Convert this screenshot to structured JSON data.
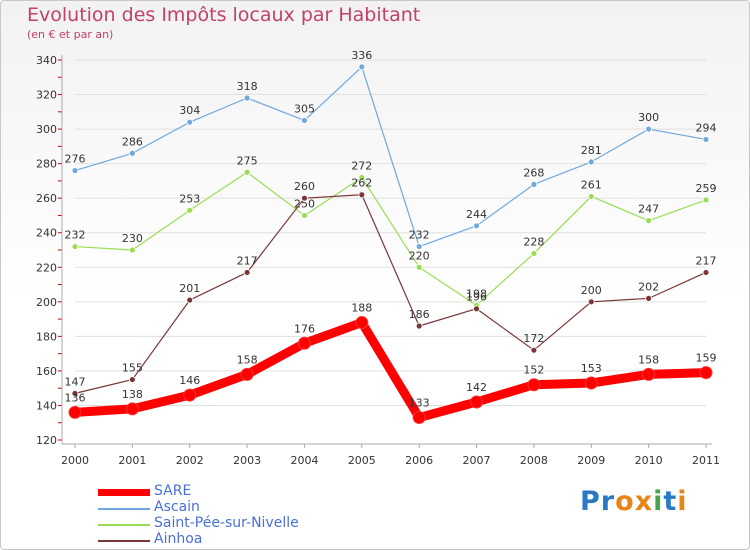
{
  "header": {
    "title": "Evolution des Impôts locaux par Habitant",
    "subtitle": "(en € et par an)"
  },
  "logo": {
    "text": "Proxiti",
    "letters": [
      "P",
      "r",
      "o",
      "x",
      "i",
      "t",
      "i"
    ]
  },
  "colors": {
    "title": "#c2416b",
    "axis": "#aaaaaa",
    "grid": "#e0e0e0",
    "legend_text": "#4a6fd6",
    "logo": [
      "#2a79c7",
      "#2a79c7",
      "#e8841a",
      "#e8841a",
      "#4aa24a",
      "#2a79c7",
      "#e8841a"
    ]
  },
  "chart_data": {
    "type": "line",
    "title": "Evolution des Impôts locaux par Habitant",
    "subtitle": "(en € et par an)",
    "xlabel": "",
    "ylabel": "",
    "ylim": [
      120,
      340
    ],
    "yticks": [
      120,
      140,
      160,
      180,
      200,
      220,
      240,
      260,
      280,
      300,
      320,
      340
    ],
    "categories": [
      "2000",
      "2001",
      "2002",
      "2003",
      "2004",
      "2005",
      "2006",
      "2007",
      "2008",
      "2009",
      "2010",
      "2011"
    ],
    "grid": "horizontal",
    "series": [
      {
        "name": "SARE",
        "values": [
          136,
          138,
          146,
          158,
          176,
          188,
          133,
          142,
          152,
          153,
          158,
          159
        ],
        "color": "#ff0000",
        "emphasis": true
      },
      {
        "name": "Ascain",
        "values": [
          276,
          286,
          304,
          318,
          305,
          336,
          232,
          244,
          268,
          281,
          300,
          294
        ],
        "color": "#6fa8dc",
        "emphasis": false
      },
      {
        "name": "Saint-Pée-sur-Nivelle",
        "values": [
          232,
          230,
          253,
          275,
          250,
          272,
          220,
          198,
          228,
          261,
          247,
          259
        ],
        "color": "#99dd55",
        "emphasis": false
      },
      {
        "name": "Ainhoa",
        "values": [
          147,
          155,
          201,
          217,
          260,
          262,
          186,
          196,
          172,
          200,
          202,
          217
        ],
        "color": "#7a3535",
        "emphasis": false
      }
    ]
  }
}
